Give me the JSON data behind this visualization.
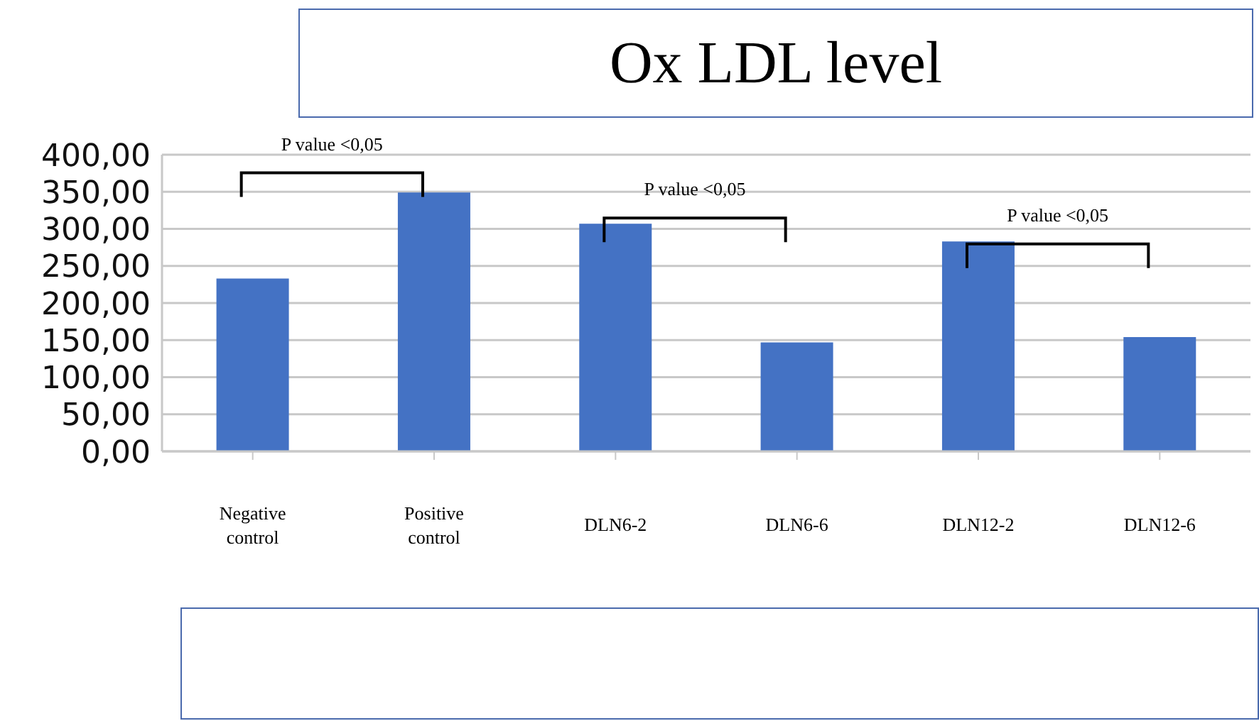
{
  "chart_data": {
    "type": "bar",
    "title": "Ox LDL level",
    "categories": [
      "Negative control",
      "Positive control",
      "DLN6-2",
      "DLN6-6",
      "DLN12-2",
      "DLN12-6"
    ],
    "values": [
      233,
      349,
      307,
      147,
      283,
      154
    ],
    "color": "#4472c4",
    "ylim": [
      0,
      400
    ],
    "yticks": [
      {
        "value": 0,
        "label": "0,00"
      },
      {
        "value": 50,
        "label": "50,00"
      },
      {
        "value": 100,
        "label": "100,00"
      },
      {
        "value": 150,
        "label": "150,00"
      },
      {
        "value": 200,
        "label": "200,00"
      },
      {
        "value": 250,
        "label": "250,00"
      },
      {
        "value": 300,
        "label": "300,00"
      },
      {
        "value": 350,
        "label": "350,00"
      },
      {
        "value": 400,
        "label": "400,00"
      }
    ],
    "grid": "y",
    "annotations": [
      "P value <0,05",
      "P value <0,05",
      "P value <0,05"
    ]
  }
}
